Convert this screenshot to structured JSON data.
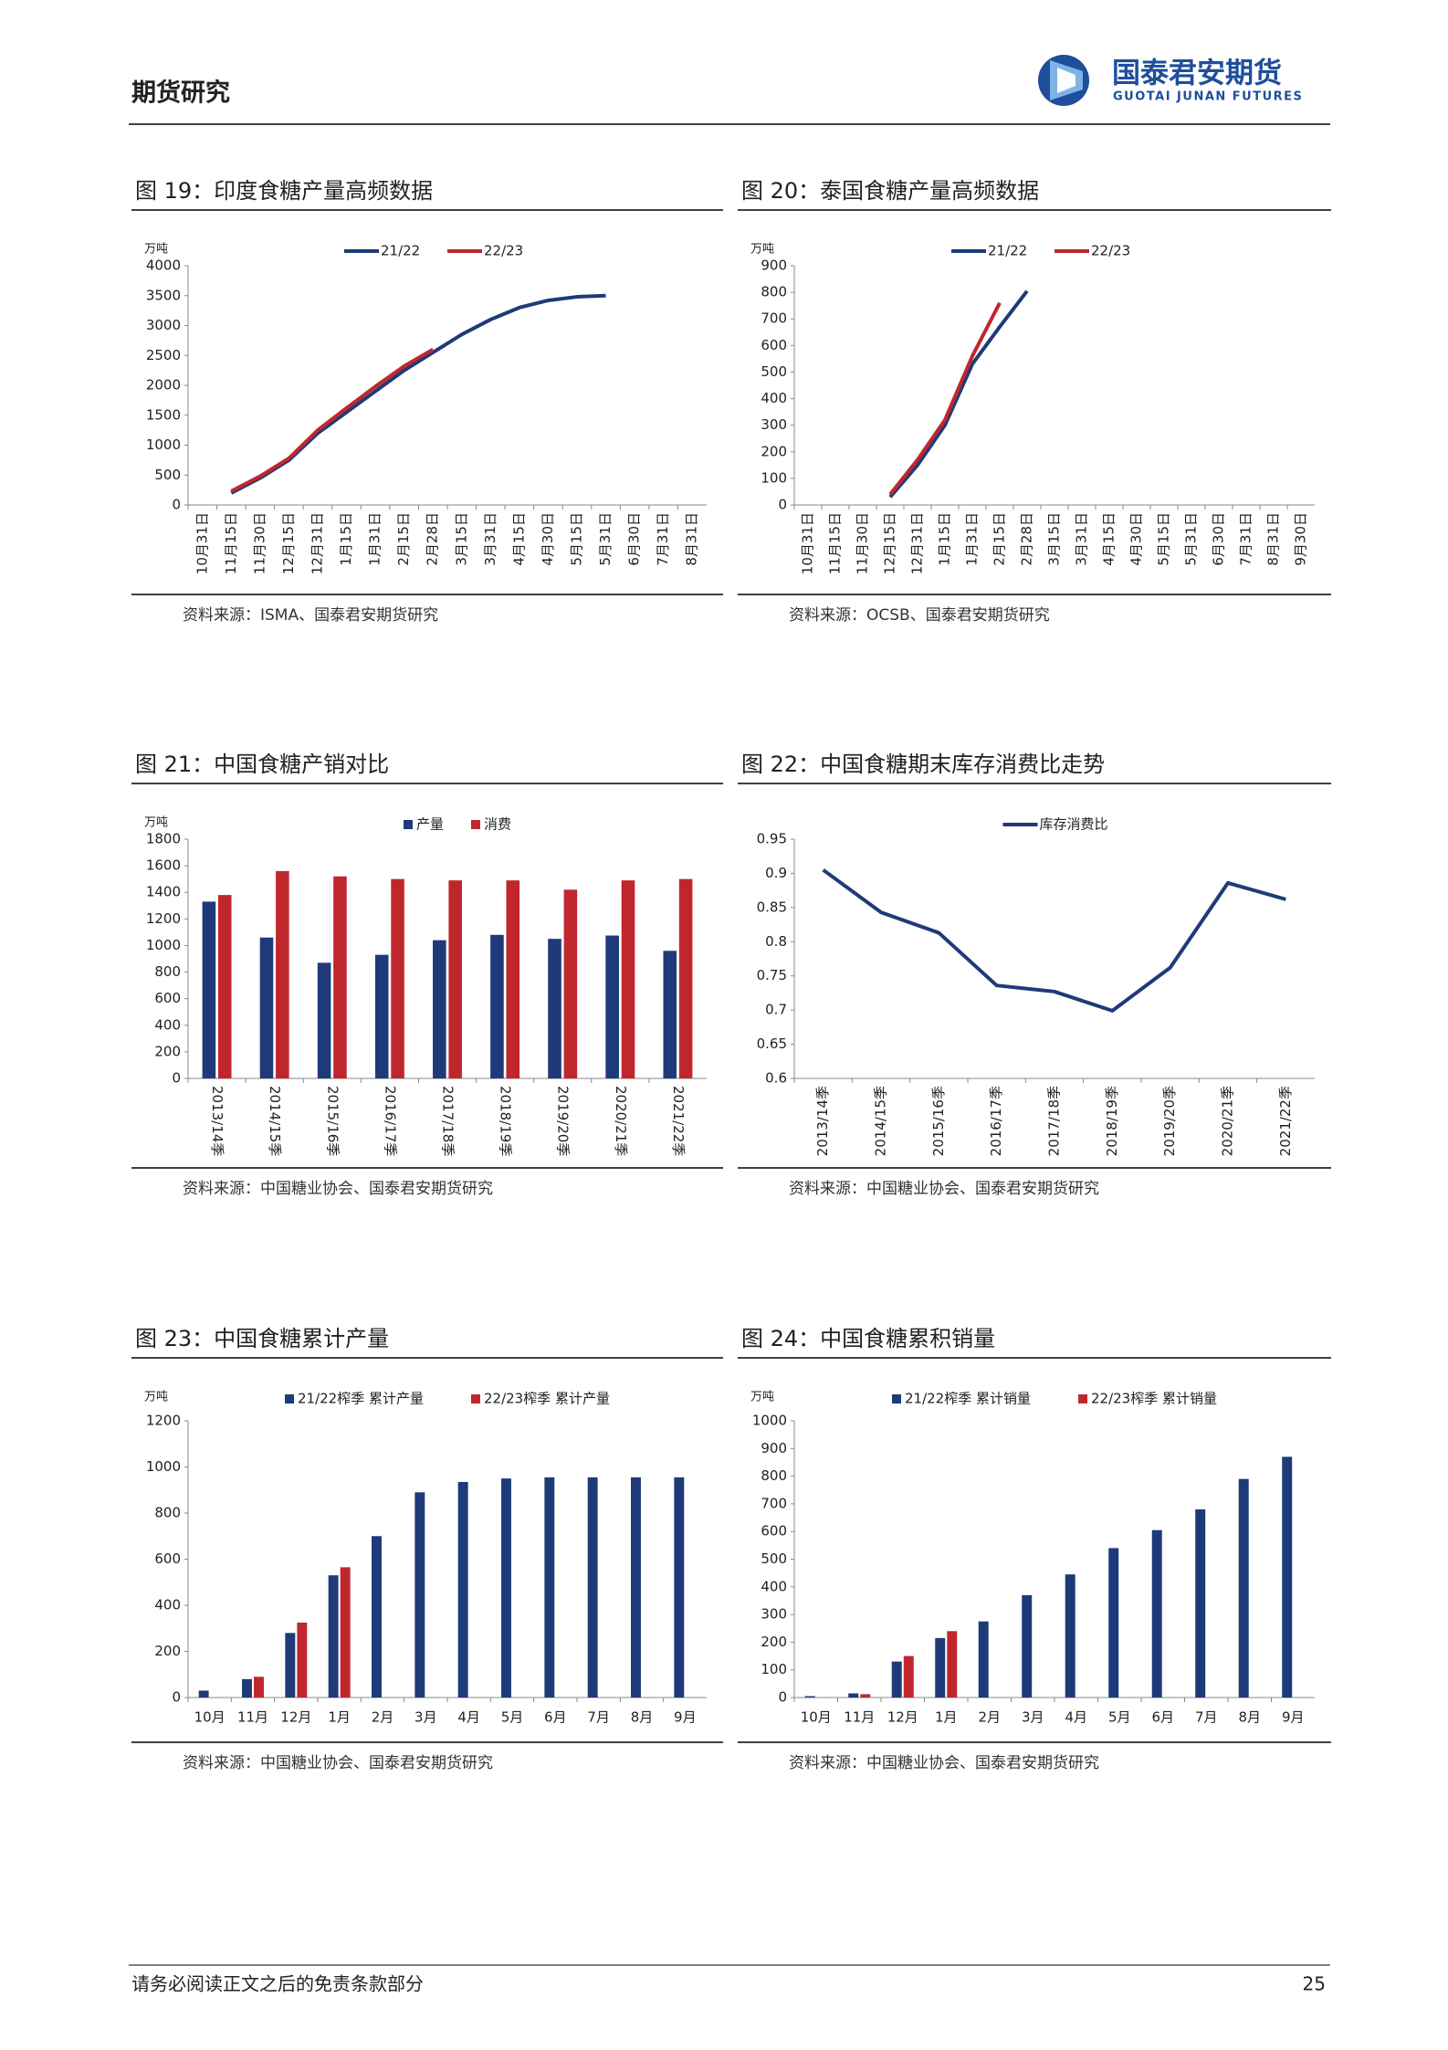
{
  "header": {
    "title": "期货研究",
    "logo_cn": "国泰君安期货",
    "logo_en": "GUOTAI JUNAN FUTURES"
  },
  "chart_data": [
    {
      "type": "line",
      "title": "图 19：印度食糖产量高频数据",
      "unit": "万吨",
      "source": "资料来源：ISMA、国泰君安期货研究",
      "categories": [
        "10月31日",
        "11月15日",
        "11月30日",
        "12月15日",
        "12月31日",
        "1月15日",
        "1月31日",
        "2月15日",
        "2月28日",
        "3月15日",
        "3月31日",
        "4月15日",
        "4月30日",
        "5月15日",
        "5月31日",
        "6月30日",
        "7月31日",
        "8月31日"
      ],
      "series": [
        {
          "name": "21/22",
          "color": "#1f3a78",
          "values": [
            null,
            200,
            450,
            750,
            1200,
            1550,
            1900,
            2250,
            2550,
            2850,
            3100,
            3300,
            3420,
            3480,
            3500,
            null,
            null,
            null
          ]
        },
        {
          "name": "22/23",
          "color": "#c0272d",
          "values": [
            null,
            230,
            480,
            780,
            1250,
            1620,
            1980,
            2320,
            2600,
            null,
            null,
            null,
            null,
            null,
            null,
            null,
            null,
            null
          ]
        }
      ],
      "ylim": [
        0,
        4000
      ],
      "yticks": [
        0,
        500,
        1000,
        1500,
        2000,
        2500,
        3000,
        3500,
        4000
      ]
    },
    {
      "type": "line",
      "title": "图 20：泰国食糖产量高频数据",
      "unit": "万吨",
      "source": "资料来源：OCSB、国泰君安期货研究",
      "categories": [
        "10月31日",
        "11月15日",
        "11月30日",
        "12月15日",
        "12月31日",
        "1月15日",
        "1月31日",
        "2月15日",
        "2月28日",
        "3月15日",
        "3月31日",
        "4月15日",
        "4月30日",
        "5月15日",
        "5月31日",
        "6月30日",
        "7月31日",
        "8月31日",
        "9月30日"
      ],
      "series": [
        {
          "name": "21/22",
          "color": "#1f3a78",
          "values": [
            null,
            null,
            null,
            30,
            150,
            300,
            530,
            670,
            805,
            null,
            null,
            null,
            null,
            null,
            null,
            null,
            null,
            null,
            null
          ]
        },
        {
          "name": "22/23",
          "color": "#c0272d",
          "values": [
            null,
            null,
            null,
            40,
            170,
            320,
            560,
            760,
            null,
            null,
            null,
            null,
            null,
            null,
            null,
            null,
            null,
            null,
            null
          ]
        }
      ],
      "ylim": [
        0,
        900
      ],
      "yticks": [
        0,
        100,
        200,
        300,
        400,
        500,
        600,
        700,
        800,
        900
      ]
    },
    {
      "type": "bar",
      "title": "图 21：中国食糖产销对比",
      "unit": "万吨",
      "source": "资料来源：中国糖业协会、国泰君安期货研究",
      "categories": [
        "2013/14季",
        "2014/15季",
        "2015/16季",
        "2016/17季",
        "2017/18季",
        "2018/19季",
        "2019/20季",
        "2020/21季",
        "2021/22季"
      ],
      "series": [
        {
          "name": "产量",
          "color": "#1f3a78",
          "values": [
            1330,
            1060,
            870,
            930,
            1040,
            1080,
            1050,
            1075,
            960
          ]
        },
        {
          "name": "消费",
          "color": "#c0272d",
          "values": [
            1380,
            1560,
            1520,
            1500,
            1490,
            1490,
            1420,
            1490,
            1500
          ]
        }
      ],
      "ylim": [
        0,
        1800
      ],
      "yticks": [
        0,
        200,
        400,
        600,
        800,
        1000,
        1200,
        1400,
        1600,
        1800
      ]
    },
    {
      "type": "line",
      "title": "图 22：中国食糖期末库存消费比走势",
      "source": "资料来源：中国糖业协会、国泰君安期货研究",
      "categories": [
        "2013/14季",
        "2014/15季",
        "2015/16季",
        "2016/17季",
        "2017/18季",
        "2018/19季",
        "2019/20季",
        "2020/21季",
        "2021/22季"
      ],
      "series": [
        {
          "name": "库存消费比",
          "color": "#1f3a78",
          "values": [
            0.905,
            0.843,
            0.813,
            0.736,
            0.727,
            0.699,
            0.762,
            0.886,
            0.862
          ]
        }
      ],
      "ylim": [
        0.6,
        0.95
      ],
      "yticks": [
        0.6,
        0.65,
        0.7,
        0.75,
        0.8,
        0.85,
        0.9,
        0.95
      ]
    },
    {
      "type": "bar",
      "title": "图 23：中国食糖累计产量",
      "unit": "万吨",
      "source": "资料来源：中国糖业协会、国泰君安期货研究",
      "categories": [
        "10月",
        "11月",
        "12月",
        "1月",
        "2月",
        "3月",
        "4月",
        "5月",
        "6月",
        "7月",
        "8月",
        "9月"
      ],
      "series": [
        {
          "name": "21/22榨季 累计产量",
          "color": "#1f3a78",
          "values": [
            30,
            80,
            280,
            530,
            700,
            890,
            935,
            950,
            955,
            955,
            955,
            955
          ]
        },
        {
          "name": "22/23榨季 累计产量",
          "color": "#c0272d",
          "values": [
            null,
            90,
            325,
            565,
            null,
            null,
            null,
            null,
            null,
            null,
            null,
            null
          ]
        }
      ],
      "ylim": [
        0,
        1200
      ],
      "yticks": [
        0,
        200,
        400,
        600,
        800,
        1000,
        1200
      ]
    },
    {
      "type": "bar",
      "title": "图 24：中国食糖累积销量",
      "unit": "万吨",
      "source": "资料来源：中国糖业协会、国泰君安期货研究",
      "categories": [
        "10月",
        "11月",
        "12月",
        "1月",
        "2月",
        "3月",
        "4月",
        "5月",
        "6月",
        "7月",
        "8月",
        "9月"
      ],
      "series": [
        {
          "name": "21/22榨季 累计销量",
          "color": "#1f3a78",
          "values": [
            5,
            15,
            130,
            215,
            275,
            370,
            445,
            540,
            605,
            680,
            790,
            870
          ]
        },
        {
          "name": "22/23榨季 累计销量",
          "color": "#c0272d",
          "values": [
            null,
            12,
            150,
            240,
            null,
            null,
            null,
            null,
            null,
            null,
            null,
            null
          ]
        }
      ],
      "ylim": [
        0,
        1000
      ],
      "yticks": [
        0,
        100,
        200,
        300,
        400,
        500,
        600,
        700,
        800,
        900,
        1000
      ]
    }
  ],
  "footer": {
    "disclaimer": "请务必阅读正文之后的免责条款部分",
    "page": "25"
  }
}
